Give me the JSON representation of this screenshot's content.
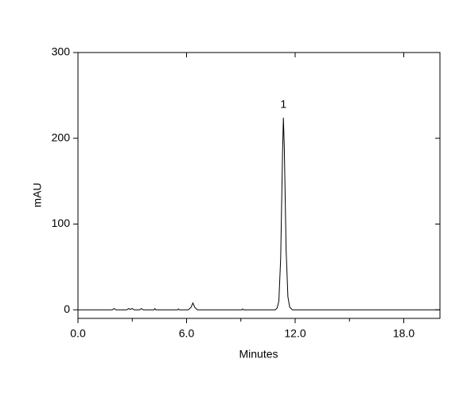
{
  "chart_data": {
    "type": "line",
    "xlabel": "Minutes",
    "ylabel": "mAU",
    "x": [
      0,
      1.9,
      2.0,
      2.1,
      2.7,
      2.8,
      2.9,
      3.0,
      3.1,
      3.4,
      3.5,
      3.6,
      4.2,
      4.25,
      4.3,
      5.5,
      5.55,
      5.6,
      6.1,
      6.25,
      6.35,
      6.45,
      6.6,
      9.05,
      9.1,
      9.15,
      10.9,
      11.0,
      11.1,
      11.2,
      11.3,
      11.35,
      11.4,
      11.5,
      11.6,
      11.7,
      11.85,
      20
    ],
    "values": [
      0,
      0,
      1.5,
      0,
      0,
      1.5,
      0.5,
      1.5,
      0,
      0,
      1.5,
      0,
      0,
      1.5,
      0,
      0,
      1,
      0,
      0,
      3,
      8,
      3,
      0,
      0,
      1,
      0,
      0,
      2,
      10,
      60,
      180,
      224,
      190,
      70,
      15,
      3,
      0,
      0
    ],
    "color": "#000000",
    "xlim": [
      0,
      20
    ],
    "ylim": [
      -10,
      300
    ],
    "xticks": [
      {
        "value": 0,
        "label": "0.0"
      },
      {
        "value": 6,
        "label": "6.0"
      },
      {
        "value": 12,
        "label": "12.0"
      },
      {
        "value": 18,
        "label": "18.0"
      }
    ],
    "xminorticks": [
      3,
      9,
      15
    ],
    "yticks": [
      0,
      100,
      200,
      300
    ],
    "annotations": [
      {
        "text": "1",
        "x": 11.35,
        "y": 224
      }
    ]
  }
}
